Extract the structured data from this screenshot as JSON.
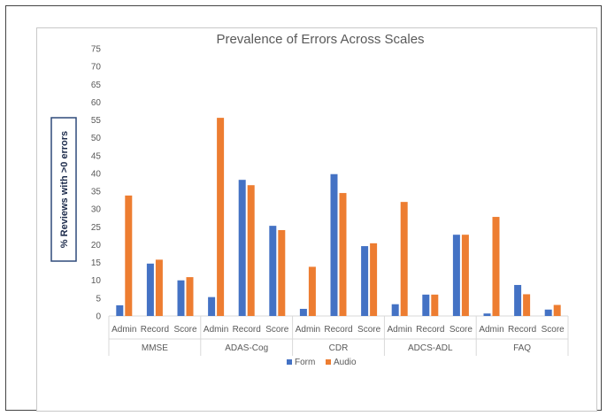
{
  "chart_data": {
    "type": "bar",
    "title": "Prevalence of Errors Across Scales",
    "ylabel": "% Reviews with >0 errors",
    "xlabel": "",
    "ylim": [
      0,
      75
    ],
    "yticks": [
      0,
      5,
      10,
      15,
      20,
      25,
      30,
      35,
      40,
      45,
      50,
      55,
      60,
      65,
      70,
      75
    ],
    "grid": false,
    "legend_position": "bottom",
    "groups": [
      {
        "name": "MMSE",
        "categories": [
          "Admin",
          "Record",
          "Score"
        ]
      },
      {
        "name": "ADAS-Cog",
        "categories": [
          "Admin",
          "Record",
          "Score"
        ]
      },
      {
        "name": "CDR",
        "categories": [
          "Admin",
          "Record",
          "Score"
        ]
      },
      {
        "name": "ADCS-ADL",
        "categories": [
          "Admin",
          "Record",
          "Score"
        ]
      },
      {
        "name": "FAQ",
        "categories": [
          "Admin",
          "Record",
          "Score"
        ]
      }
    ],
    "series": [
      {
        "name": "Form",
        "color": "#4472c4",
        "values": [
          3,
          14.7,
          10,
          5.3,
          38.2,
          25.3,
          2,
          39.8,
          19.6,
          3.3,
          6,
          22.8,
          0.7,
          8.7,
          1.8
        ]
      },
      {
        "name": "Audio",
        "color": "#ed7d31",
        "values": [
          33.8,
          15.8,
          10.9,
          55.6,
          36.7,
          24.1,
          13.8,
          34.5,
          20.4,
          32,
          6,
          22.8,
          27.8,
          6.1,
          3.1
        ]
      }
    ]
  }
}
